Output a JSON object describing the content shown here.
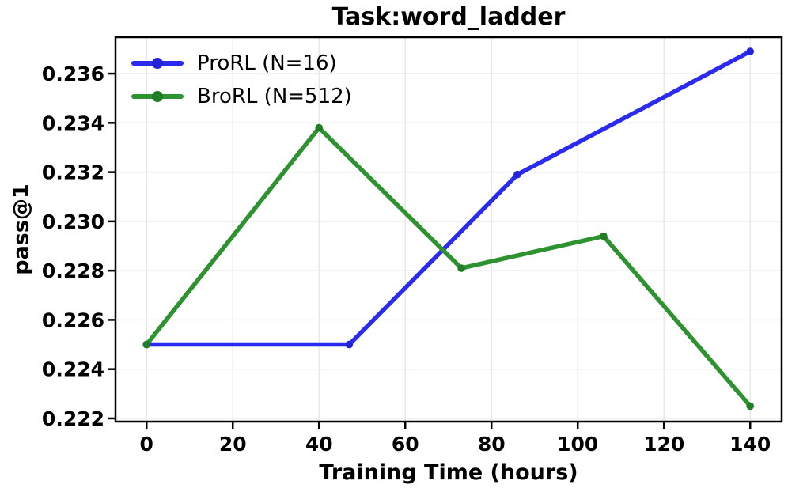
{
  "title": "Task:word_ladder",
  "axes": {
    "x_label": "Training Time (hours)",
    "y_label": "pass@1"
  },
  "colors": {
    "prorl_line": "#2b2bf0",
    "prorl_marker": "#2323d8",
    "brorl_line": "#2e9230",
    "brorl_marker": "#1f7d23",
    "grid": "#e7e7e7",
    "spine": "#000000",
    "text": "#000000",
    "background": "#ffffff"
  },
  "chart_data": {
    "type": "line",
    "title": "Task:word_ladder",
    "xlabel": "Training Time (hours)",
    "ylabel": "pass@1",
    "xlim": [
      -7.2,
      147.3
    ],
    "ylim": [
      0.22187,
      0.23748
    ],
    "xticks": [
      0,
      20,
      40,
      60,
      80,
      100,
      120,
      140
    ],
    "xtick_labels": [
      "0",
      "20",
      "40",
      "60",
      "80",
      "100",
      "120",
      "140"
    ],
    "yticks": [
      0.222,
      0.224,
      0.226,
      0.228,
      0.23,
      0.232,
      0.234,
      0.236
    ],
    "ytick_labels": [
      "0.222",
      "0.224",
      "0.226",
      "0.228",
      "0.230",
      "0.232",
      "0.234",
      "0.236"
    ],
    "grid": true,
    "legend_position": "upper-left",
    "legend_frame": false,
    "series": [
      {
        "name": "ProRL (N=16)",
        "color": "#2b2bf0",
        "marker_color": "#2323d8",
        "x": [
          0,
          47,
          86,
          140
        ],
        "y": [
          0.225,
          0.225,
          0.2319,
          0.2369
        ]
      },
      {
        "name": "BroRL (N=512)",
        "color": "#2e9230",
        "marker_color": "#1f7d23",
        "x": [
          0,
          40,
          73,
          106,
          140
        ],
        "y": [
          0.225,
          0.2338,
          0.2281,
          0.2294,
          0.2225
        ]
      }
    ]
  }
}
